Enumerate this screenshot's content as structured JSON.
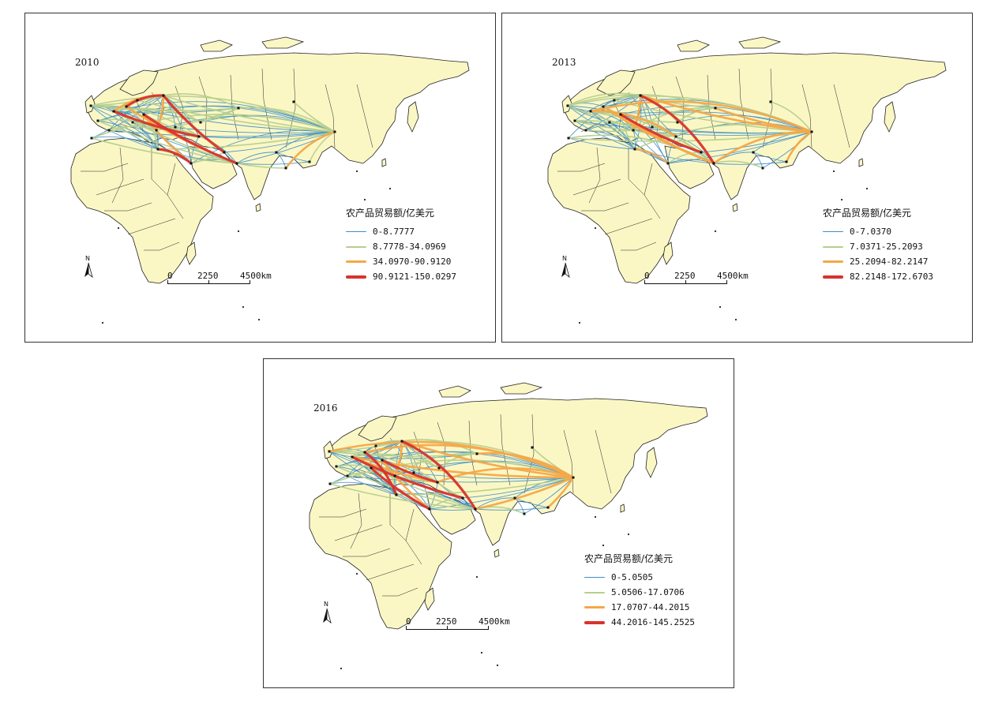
{
  "colors": {
    "land": "#fbf7c5",
    "border": "#222222",
    "class1": "#3f8fc7",
    "class2": "#b5cf8e",
    "class3": "#f4a848",
    "class4": "#d9332b",
    "node": "#111111"
  },
  "north_arrow": {
    "label": "N"
  },
  "scale_bar": {
    "labels": [
      "0",
      "2250",
      "4500km"
    ]
  },
  "maps": [
    {
      "year": "2010",
      "legend": {
        "title": "农产品贸易额/亿美元",
        "items": [
          "0-8.7777",
          "8.7778-34.0969",
          "34.0970-90.9120",
          "90.9121-150.0297"
        ]
      }
    },
    {
      "year": "2013",
      "legend": {
        "title": "农产品贸易额/亿美元",
        "items": [
          "0-7.0370",
          "7.0371-25.2093",
          "25.2094-82.2147",
          "82.2148-172.6703"
        ]
      }
    },
    {
      "year": "2016",
      "legend": {
        "title": "农产品贸易额/亿美元",
        "items": [
          "0-5.0505",
          "5.0506-17.0706",
          "17.0707-44.2015",
          "44.2016-145.2525"
        ]
      }
    }
  ]
}
